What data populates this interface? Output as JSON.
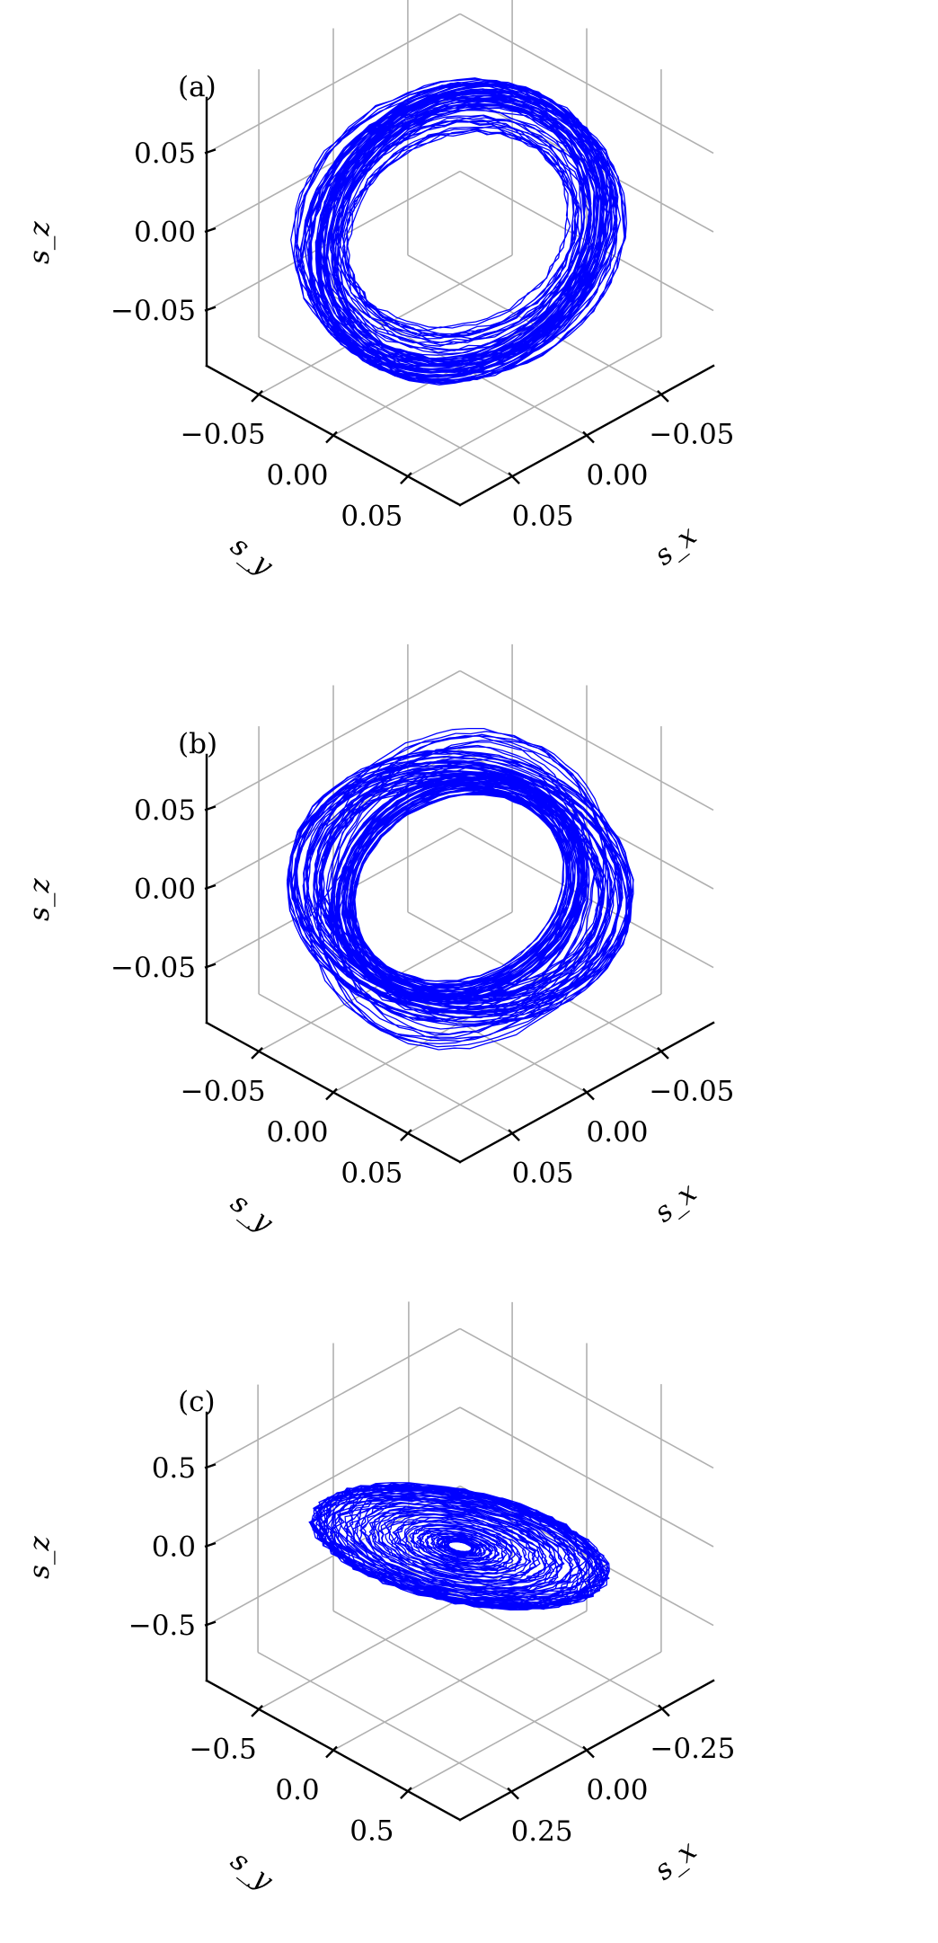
{
  "colors": {
    "trajectory": "#0000ff",
    "grid": "#b0b0b0",
    "axis": "#000000",
    "background": "#ffffff"
  },
  "chart_data": [
    {
      "type": "line3d",
      "panel_label": "(a)",
      "xlabel": "s_x",
      "ylabel": "s_y",
      "zlabel": "s_z",
      "xlim": [
        -0.085,
        0.085
      ],
      "ylim": [
        -0.085,
        0.085
      ],
      "zlim": [
        -0.085,
        0.085
      ],
      "x_ticks": [
        -0.05,
        0.0,
        0.05
      ],
      "x_tick_labels": [
        "−0.05",
        "0.00",
        "0.05"
      ],
      "y_ticks": [
        -0.05,
        0.0,
        0.05
      ],
      "y_tick_labels": [
        "−0.05",
        "0.00",
        "0.05"
      ],
      "z_ticks": [
        -0.05,
        0.0,
        0.05
      ],
      "z_tick_labels": [
        "−0.05",
        "0.00",
        "0.05"
      ],
      "grid": true,
      "trajectory": {
        "bands": [
          {
            "normal": [
              0.25,
              0.95,
              0.25
            ],
            "radius": 0.074,
            "turns": 30,
            "spread": 0.006
          },
          {
            "normal": [
              0.55,
              0.15,
              0.82
            ],
            "radius": 0.068,
            "turns": 40,
            "spread": 0.012
          }
        ]
      }
    },
    {
      "type": "line3d",
      "panel_label": "(b)",
      "xlabel": "s_x",
      "ylabel": "s_y",
      "zlabel": "s_z",
      "xlim": [
        -0.085,
        0.085
      ],
      "ylim": [
        -0.085,
        0.085
      ],
      "zlim": [
        -0.085,
        0.085
      ],
      "x_ticks": [
        -0.05,
        0.0,
        0.05
      ],
      "x_tick_labels": [
        "−0.05",
        "0.00",
        "0.05"
      ],
      "y_ticks": [
        -0.05,
        0.0,
        0.05
      ],
      "y_tick_labels": [
        "−0.05",
        "0.00",
        "0.05"
      ],
      "z_ticks": [
        -0.05,
        0.0,
        0.05
      ],
      "z_tick_labels": [
        "−0.05",
        "0.00",
        "0.05"
      ],
      "grid": true,
      "trajectory": {
        "bands": [
          {
            "normal": [
              0.15,
              0.3,
              0.94
            ],
            "radius": 0.074,
            "turns": 35,
            "spread": 0.008
          },
          {
            "normal": [
              0.55,
              0.1,
              0.83
            ],
            "radius": 0.058,
            "turns": 40,
            "spread": 0.005
          },
          {
            "normal": [
              0.2,
              0.9,
              0.35
            ],
            "radius": 0.072,
            "turns": 15,
            "spread": 0.01
          }
        ]
      }
    },
    {
      "type": "line3d",
      "panel_label": "(c)",
      "xlabel": "s_x",
      "ylabel": "s_y",
      "zlabel": "s_z",
      "xlim": [
        -0.42,
        0.42
      ],
      "ylim": [
        -0.85,
        0.85
      ],
      "zlim": [
        -0.85,
        0.85
      ],
      "x_ticks": [
        -0.25,
        0.0,
        0.25
      ],
      "x_tick_labels": [
        "−0.25",
        "0.00",
        "0.25"
      ],
      "y_ticks": [
        -0.5,
        0.0,
        0.5
      ],
      "y_tick_labels": [
        "−0.5",
        "0.0",
        "0.5"
      ],
      "z_ticks": [
        -0.5,
        0.0,
        0.5
      ],
      "z_tick_labels": [
        "−0.5",
        "0.0",
        "0.5"
      ],
      "grid": true,
      "trajectory": {
        "disk": {
          "r_max": 0.8,
          "turns": 90,
          "tilt": 0.28
        }
      }
    }
  ]
}
